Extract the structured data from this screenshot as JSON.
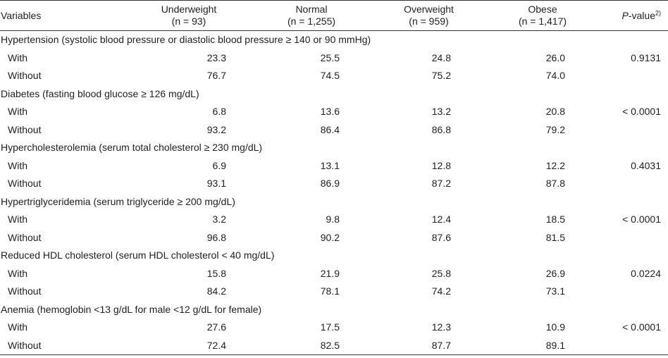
{
  "header": {
    "variables": "Variables",
    "groups": [
      {
        "name": "Underweight",
        "n": "(n = 93)"
      },
      {
        "name": "Normal",
        "n": "(n = 1,255)"
      },
      {
        "name": "Overweight",
        "n": "(n = 959)"
      },
      {
        "name": "Obese",
        "n": "(n = 1,417)"
      }
    ],
    "pvalue_label": "P",
    "pvalue_suffix": "-value",
    "pvalue_sup": "2)"
  },
  "categories": [
    {
      "title": "Hypertension (systolic blood pressure or diastolic blood pressure ≥ 140 or 90 mmHg)",
      "rows": [
        {
          "label": "With",
          "values": [
            "23.3",
            "25.5",
            "24.8",
            "26.0"
          ],
          "p": "0.9131"
        },
        {
          "label": "Without",
          "values": [
            "76.7",
            "74.5",
            "75.2",
            "74.0"
          ],
          "p": ""
        }
      ]
    },
    {
      "title": "Diabetes (fasting blood glucose ≥ 126 mg/dL)",
      "rows": [
        {
          "label": "With",
          "values": [
            "6.8",
            "13.6",
            "13.2",
            "20.8"
          ],
          "p": "< 0.0001"
        },
        {
          "label": "Without",
          "values": [
            "93.2",
            "86.4",
            "86.8",
            "79.2"
          ],
          "p": ""
        }
      ]
    },
    {
      "title": "Hypercholesterolemia (serum total cholesterol ≥ 230 mg/dL)",
      "rows": [
        {
          "label": "With",
          "values": [
            "6.9",
            "13.1",
            "12.8",
            "12.2"
          ],
          "p": "0.4031"
        },
        {
          "label": "Without",
          "values": [
            "93.1",
            "86.9",
            "87.2",
            "87.8"
          ],
          "p": ""
        }
      ]
    },
    {
      "title": "Hypertriglyceridemia (serum triglyceride ≥ 200 mg/dL)",
      "rows": [
        {
          "label": "With",
          "values": [
            "3.2",
            "9.8",
            "12.4",
            "18.5"
          ],
          "p": "< 0.0001"
        },
        {
          "label": "Without",
          "values": [
            "96.8",
            "90.2",
            "87.6",
            "81.5"
          ],
          "p": ""
        }
      ]
    },
    {
      "title": "Reduced HDL cholesterol (serum HDL cholesterol < 40 mg/dL)",
      "rows": [
        {
          "label": "With",
          "values": [
            "15.8",
            "21.9",
            "25.8",
            "26.9"
          ],
          "p": "0.0224"
        },
        {
          "label": "Without",
          "values": [
            "84.2",
            "78.1",
            "74.2",
            "73.1"
          ],
          "p": ""
        }
      ]
    },
    {
      "title": "Anemia (hemoglobin <13 g/dL for male <12 g/dL for female)",
      "rows": [
        {
          "label": "With",
          "values": [
            "27.6",
            "17.5",
            "12.3",
            "10.9"
          ],
          "p": "< 0.0001"
        },
        {
          "label": "Without",
          "values": [
            "72.4",
            "82.5",
            "87.7",
            "89.1"
          ],
          "p": ""
        }
      ]
    }
  ]
}
